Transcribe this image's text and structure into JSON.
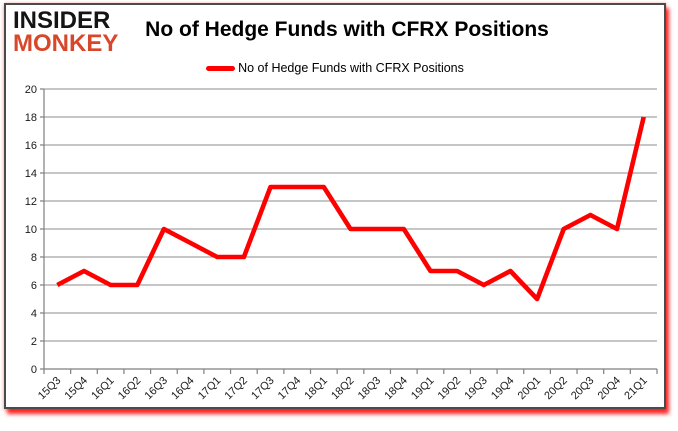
{
  "logo": {
    "line1": "INSIDER",
    "line2": "MONKEY"
  },
  "header": {
    "title": "No of Hedge Funds with CFRX Positions"
  },
  "legend": {
    "label": "No of Hedge Funds with CFRX Positions"
  },
  "colors": {
    "line": "#fe0000",
    "legend_swatch": "#fe0000",
    "grid": "#8c8c8c",
    "axis": "#7f7f7f",
    "tick_label": "#1a1a1a",
    "logo_top": "#141414",
    "logo_bottom": "#d9472b",
    "frame_border": "#4a4a4a"
  },
  "chart_data": {
    "type": "line",
    "title": "No of Hedge Funds with CFRX Positions",
    "categories": [
      "15Q3",
      "15Q4",
      "16Q1",
      "16Q2",
      "16Q3",
      "16Q4",
      "17Q1",
      "17Q2",
      "17Q3",
      "17Q4",
      "18Q1",
      "18Q2",
      "18Q3",
      "18Q4",
      "19Q1",
      "19Q2",
      "19Q3",
      "19Q4",
      "20Q1",
      "20Q2",
      "20Q3",
      "20Q4",
      "21Q1"
    ],
    "series": [
      {
        "name": "No of Hedge Funds with CFRX Positions",
        "values": [
          6,
          7,
          6,
          6,
          10,
          9,
          8,
          8,
          13,
          13,
          13,
          10,
          10,
          10,
          7,
          7,
          6,
          7,
          5,
          10,
          11,
          10,
          18
        ]
      }
    ],
    "ylim": [
      0,
      20
    ],
    "ytick_step": 2,
    "grid": true,
    "legend_position": "top-center",
    "x_label_rotation": -45
  }
}
